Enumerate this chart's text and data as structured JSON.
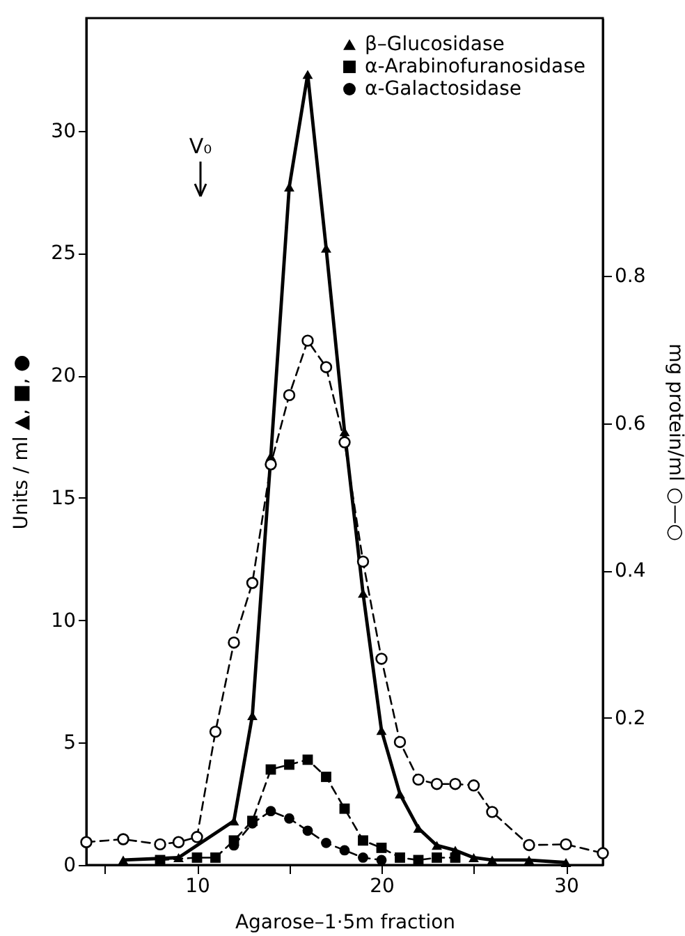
{
  "chart_data": {
    "type": "line",
    "xlabel": "Agarose–1·5m fraction",
    "ylabel": "Units / ml  ▲, ■, ●",
    "y2label": "mg protein/ml  ○—○",
    "xlim": [
      4,
      32
    ],
    "xticks": [
      {
        "value": 5,
        "label": null
      },
      10,
      {
        "value": 15,
        "label": null
      },
      20,
      {
        "value": 25,
        "label": null
      },
      30
    ],
    "ylim": [
      0,
      34.6
    ],
    "yticks": [
      0,
      5,
      10,
      15,
      20,
      25,
      30
    ],
    "y2lim": [
      0,
      1.15
    ],
    "y2ticks": [
      0.2,
      0.4,
      0.6,
      0.8
    ],
    "grid": false,
    "legend": "top right",
    "annotations": [
      "V₀"
    ],
    "series": [
      {
        "name": "β–Glucosidase",
        "color": "#000000",
        "marker": "triangle",
        "line_style": "solid",
        "x": [
          6,
          9,
          12,
          13,
          14,
          15,
          16,
          17,
          18,
          19,
          20,
          21,
          22,
          23,
          24,
          25,
          26,
          28,
          30
        ],
        "values": [
          0.2,
          0.3,
          1.8,
          6.1,
          16.7,
          27.7,
          32.3,
          25.2,
          17.7,
          11.1,
          5.5,
          2.9,
          1.5,
          0.8,
          0.6,
          0.3,
          0.2,
          0.2,
          0.1
        ]
      },
      {
        "name": "α-Arabinofuranosidase",
        "color": "#000000",
        "marker": "square",
        "line_style": "dashed",
        "x": [
          8,
          10,
          11,
          12,
          13,
          14,
          15,
          16,
          17,
          18,
          19,
          20,
          21,
          22,
          23,
          24
        ],
        "values": [
          0.2,
          0.3,
          0.3,
          1.0,
          1.8,
          3.9,
          4.1,
          4.3,
          3.6,
          2.3,
          1.0,
          0.7,
          0.3,
          0.2,
          0.3,
          0.3
        ]
      },
      {
        "name": "α-Galactosidase",
        "color": "#000000",
        "marker": "circle",
        "line_style": "dashed",
        "x": [
          12,
          13,
          14,
          15,
          16,
          17,
          18,
          19,
          20
        ],
        "values": [
          0.8,
          1.7,
          2.2,
          1.9,
          1.4,
          0.9,
          0.6,
          0.3,
          0.2
        ]
      },
      {
        "color": "#000000",
        "marker": "circle",
        "line_style": "dashed",
        "axis": "y2",
        "x": [
          4,
          6,
          8,
          9,
          10,
          11,
          12,
          13,
          14,
          15,
          16,
          17,
          18,
          19,
          20,
          21,
          22,
          23,
          24,
          25,
          26,
          28,
          30,
          32
        ],
        "values": [
          0.031,
          0.035,
          0.028,
          0.031,
          0.038,
          0.181,
          0.302,
          0.383,
          0.544,
          0.638,
          0.712,
          0.676,
          0.574,
          0.412,
          0.28,
          0.167,
          0.116,
          0.11,
          0.11,
          0.108,
          0.072,
          0.027,
          0.028,
          0.016
        ]
      }
    ]
  }
}
